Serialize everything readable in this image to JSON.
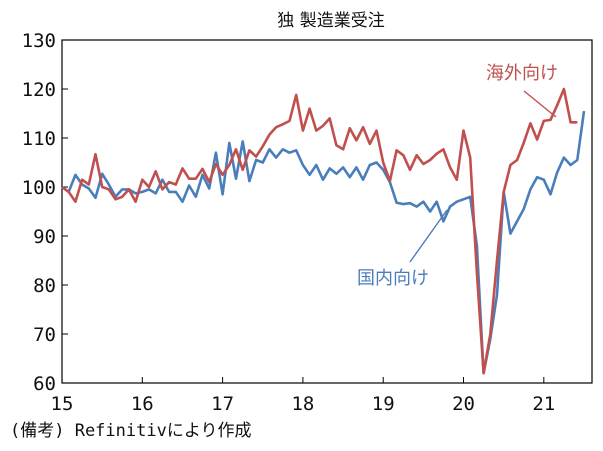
{
  "chart_data": {
    "type": "line",
    "title": "独 製造業受注",
    "note": "(備考) Refinitivにより作成",
    "xlabel": "",
    "ylabel": "",
    "ylim": [
      60,
      130
    ],
    "yticks": [
      60,
      70,
      80,
      90,
      100,
      110,
      120,
      130
    ],
    "xlim": [
      15,
      21.6
    ],
    "xticks": [
      {
        "value": 15,
        "label": "15"
      },
      {
        "value": 16,
        "label": "16"
      },
      {
        "value": 17,
        "label": "17"
      },
      {
        "value": 18,
        "label": "18"
      },
      {
        "value": 19,
        "label": "19"
      },
      {
        "value": 20,
        "label": "20"
      },
      {
        "value": 21,
        "label": "21"
      }
    ],
    "grid": false,
    "series": [
      {
        "name": "海外向け",
        "color": "#c0504d",
        "values": [
          100.0,
          99.0,
          97.0,
          101.5,
          100.5,
          106.7,
          100.0,
          99.5,
          97.5,
          98.0,
          99.5,
          97.0,
          101.5,
          100.0,
          103.2,
          99.5,
          101.0,
          100.5,
          103.8,
          101.7,
          101.7,
          103.7,
          101.0,
          104.7,
          102.5,
          104.5,
          107.7,
          103.5,
          107.5,
          106.2,
          108.3,
          110.7,
          112.2,
          112.8,
          113.5,
          118.8,
          111.5,
          116.0,
          111.5,
          112.5,
          114.0,
          108.5,
          107.7,
          112.0,
          109.5,
          112.2,
          108.8,
          111.5,
          105.0,
          101.2,
          107.5,
          106.5,
          103.5,
          106.5,
          104.7,
          105.5,
          106.8,
          107.7,
          104.0,
          101.5,
          111.5,
          106.0,
          82.5,
          62.0,
          70.0,
          85.0,
          99.0,
          104.5,
          105.5,
          109.0,
          113.0,
          109.7,
          113.5,
          113.7,
          116.7,
          120.0,
          113.2,
          113.2
        ]
      },
      {
        "name": "国内向け",
        "color": "#4a7ebb",
        "values": [
          100.0,
          99.0,
          102.5,
          100.5,
          99.7,
          97.8,
          102.7,
          100.5,
          98.0,
          99.5,
          99.5,
          98.7,
          99.0,
          99.5,
          98.7,
          101.5,
          99.0,
          99.0,
          97.0,
          100.3,
          98.0,
          102.5,
          99.7,
          107.0,
          98.5,
          109.0,
          101.7,
          109.3,
          101.2,
          105.5,
          105.0,
          107.7,
          106.0,
          107.7,
          107.0,
          107.5,
          104.5,
          102.5,
          104.5,
          101.5,
          103.8,
          102.7,
          104.0,
          102.0,
          104.0,
          101.5,
          104.5,
          105.0,
          103.5,
          101.0,
          96.8,
          96.5,
          96.7,
          96.0,
          97.0,
          95.0,
          97.0,
          93.0,
          96.0,
          97.0,
          97.5,
          98.0,
          88.0,
          62.0,
          69.0,
          78.0,
          99.0,
          90.5,
          93.0,
          95.5,
          99.5,
          102.0,
          101.5,
          98.5,
          103.0,
          106.0,
          104.5,
          105.5,
          115.5
        ]
      }
    ],
    "annotations": [
      {
        "series": "海外向け",
        "text": "海外向け"
      },
      {
        "series": "国内向け",
        "text": "国内向け"
      }
    ]
  }
}
